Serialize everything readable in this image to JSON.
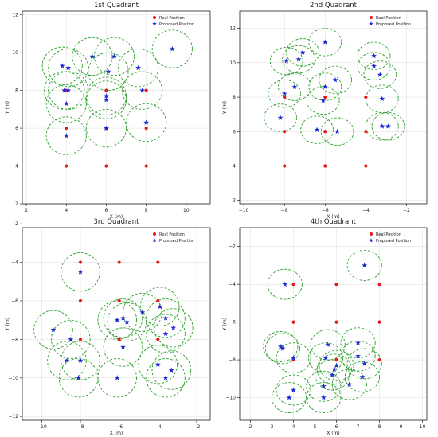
{
  "legend": {
    "real": "Real Position",
    "proposed": "Proposed Position"
  },
  "colors": {
    "real": "#e31a1c",
    "proposed": "#1f2bd6",
    "circle": "#2ca02c"
  },
  "chart_data": [
    {
      "type": "scatter",
      "title": "1st Quadrant",
      "xlabel": "X (m)",
      "ylabel": "Y (m)",
      "xlim": [
        1.8,
        11.2
      ],
      "ylim": [
        2,
        12.2
      ],
      "xticks": [
        2,
        4,
        6,
        8,
        10
      ],
      "yticks": [
        2,
        4,
        6,
        8,
        10,
        12
      ],
      "grid": true,
      "legend_position": "top-right",
      "real": [
        [
          4,
          4
        ],
        [
          6,
          4
        ],
        [
          8,
          4
        ],
        [
          4,
          6
        ],
        [
          6,
          6
        ],
        [
          8,
          6
        ],
        [
          4,
          8
        ],
        [
          6,
          8
        ],
        [
          8,
          8
        ]
      ],
      "proposed": [
        [
          3.8,
          9.3
        ],
        [
          4.1,
          9.2
        ],
        [
          4.1,
          8.0
        ],
        [
          3.9,
          8.0
        ],
        [
          4.0,
          7.3
        ],
        [
          4.0,
          5.6
        ],
        [
          5.3,
          9.8
        ],
        [
          6.4,
          9.8
        ],
        [
          6.1,
          9.0
        ],
        [
          6.0,
          7.7
        ],
        [
          6.0,
          7.5
        ],
        [
          6.0,
          6.0
        ],
        [
          7.6,
          9.2
        ],
        [
          7.8,
          8.0
        ],
        [
          8.0,
          6.3
        ],
        [
          9.3,
          10.2
        ]
      ],
      "radius": 1.0
    },
    {
      "type": "scatter",
      "title": "2nd Quadrant",
      "xlabel": "X (m)",
      "ylabel": "Y (m)",
      "xlim": [
        -10.2,
        -1
      ],
      "ylim": [
        1.8,
        13
      ],
      "xticks": [
        -10,
        -8,
        -6,
        -4,
        -2
      ],
      "yticks": [
        2,
        4,
        6,
        8,
        10,
        12
      ],
      "grid": true,
      "legend_position": "top-right",
      "real": [
        [
          -8,
          4
        ],
        [
          -6,
          4
        ],
        [
          -4,
          4
        ],
        [
          -8,
          6
        ],
        [
          -6,
          6
        ],
        [
          -4,
          6
        ],
        [
          -8,
          8
        ],
        [
          -6,
          8
        ],
        [
          -4,
          8
        ]
      ],
      "proposed": [
        [
          -7.9,
          10.1
        ],
        [
          -7.3,
          10.2
        ],
        [
          -7.1,
          10.6
        ],
        [
          -6.0,
          11.2
        ],
        [
          -3.6,
          10.4
        ],
        [
          -3.6,
          9.8
        ],
        [
          -3.3,
          9.3
        ],
        [
          -7.5,
          8.6
        ],
        [
          -8.0,
          8.2
        ],
        [
          -5.5,
          9.0
        ],
        [
          -6.0,
          8.6
        ],
        [
          -6.1,
          7.8
        ],
        [
          -3.2,
          7.9
        ],
        [
          -8.2,
          6.8
        ],
        [
          -6.4,
          6.1
        ],
        [
          -5.4,
          6.0
        ],
        [
          -3.2,
          6.3
        ],
        [
          -2.9,
          6.3
        ]
      ],
      "radius": 0.8
    },
    {
      "type": "scatter",
      "title": "3rd Quadrant",
      "xlabel": "X (m)",
      "ylabel": "Y (m)",
      "xlim": [
        -11,
        -1.3
      ],
      "ylim": [
        -12.2,
        -2.2
      ],
      "xticks": [
        -10,
        -8,
        -6,
        -4,
        -2
      ],
      "yticks": [
        -12,
        -10,
        -8,
        -6,
        -4,
        -2
      ],
      "grid": true,
      "legend_position": "top-right",
      "real": [
        [
          -8,
          -4
        ],
        [
          -6,
          -4
        ],
        [
          -4,
          -4
        ],
        [
          -8,
          -6
        ],
        [
          -6,
          -6
        ],
        [
          -4,
          -6
        ],
        [
          -8,
          -8
        ],
        [
          -6,
          -8
        ],
        [
          -4,
          -8
        ]
      ],
      "proposed": [
        [
          -8.0,
          -4.5
        ],
        [
          -9.4,
          -7.5
        ],
        [
          -8.5,
          -8.0
        ],
        [
          -8.7,
          -9.1
        ],
        [
          -8.0,
          -9.1
        ],
        [
          -8.1,
          -10.0
        ],
        [
          -6.1,
          -7.0
        ],
        [
          -5.8,
          -6.9
        ],
        [
          -5.6,
          -7.1
        ],
        [
          -5.8,
          -8.4
        ],
        [
          -4.8,
          -6.6
        ],
        [
          -3.9,
          -6.3
        ],
        [
          -3.6,
          -6.9
        ],
        [
          -3.6,
          -7.7
        ],
        [
          -3.2,
          -7.4
        ],
        [
          -4.0,
          -9.3
        ],
        [
          -3.3,
          -9.6
        ],
        [
          -3.6,
          -10.0
        ],
        [
          -6.1,
          -10.0
        ]
      ],
      "radius": 1.0
    },
    {
      "type": "scatter",
      "title": "4th Quadrant",
      "xlabel": "X (m)",
      "ylabel": "Y (m)",
      "xlim": [
        1.5,
        10.2
      ],
      "ylim": [
        -11.2,
        -1
      ],
      "xticks": [
        2,
        3,
        4,
        5,
        6,
        7,
        8,
        9,
        10
      ],
      "yticks": [
        -10,
        -8,
        -6,
        -4,
        -2
      ],
      "grid": true,
      "legend_position": "top-right",
      "real": [
        [
          4,
          -4
        ],
        [
          6,
          -4
        ],
        [
          8,
          -4
        ],
        [
          4,
          -6
        ],
        [
          6,
          -6
        ],
        [
          8,
          -6
        ],
        [
          4,
          -8
        ],
        [
          6,
          -8
        ],
        [
          8,
          -8
        ]
      ],
      "proposed": [
        [
          3.6,
          -4.0
        ],
        [
          7.3,
          -3.0
        ],
        [
          3.4,
          -7.3
        ],
        [
          3.5,
          -7.4
        ],
        [
          4.0,
          -7.9
        ],
        [
          5.6,
          -7.2
        ],
        [
          5.5,
          -7.9
        ],
        [
          6.0,
          -8.3
        ],
        [
          5.9,
          -8.5
        ],
        [
          5.8,
          -8.8
        ],
        [
          6.6,
          -9.3
        ],
        [
          7.0,
          -7.1
        ],
        [
          7.0,
          -7.8
        ],
        [
          7.3,
          -8.2
        ],
        [
          7.2,
          -8.9
        ],
        [
          5.4,
          -9.4
        ],
        [
          5.4,
          -10.0
        ],
        [
          4.0,
          -9.6
        ],
        [
          3.8,
          -10.0
        ]
      ],
      "radius": 0.8
    }
  ]
}
